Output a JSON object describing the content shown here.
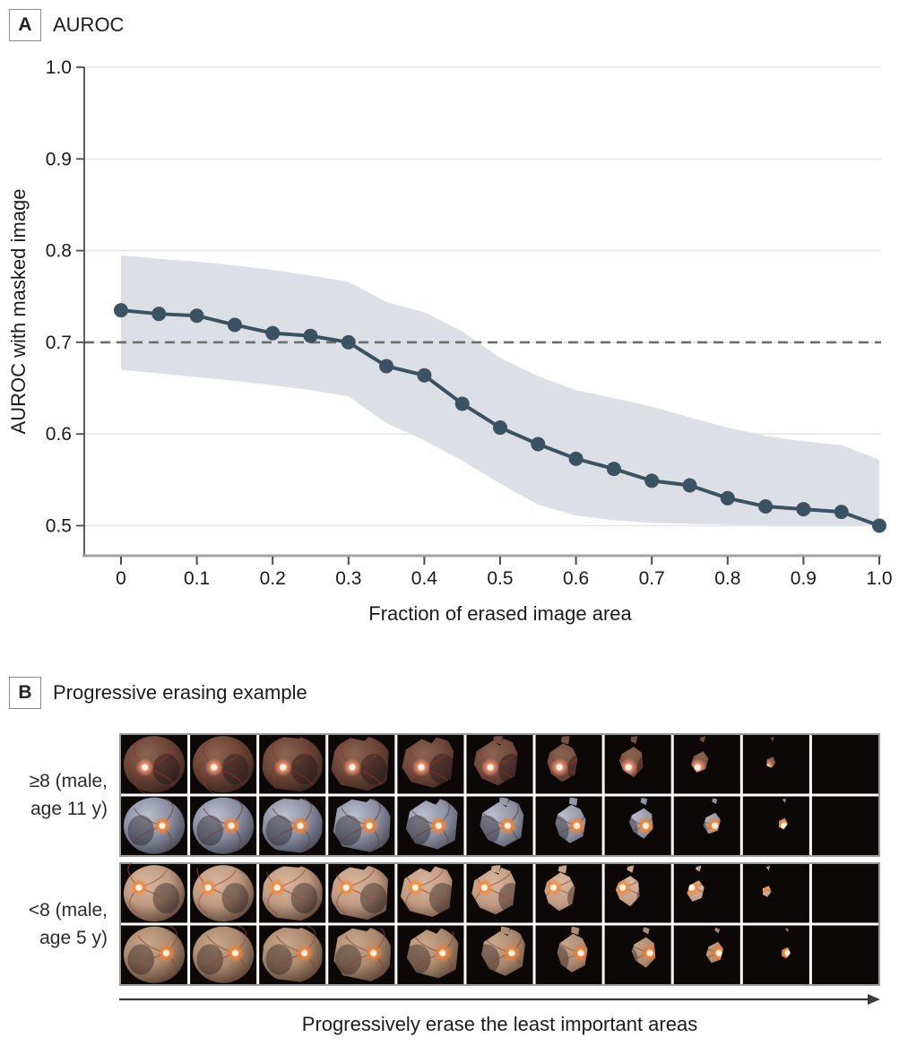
{
  "panel_a": {
    "label": "A",
    "title": "AUROC"
  },
  "chart_data": {
    "type": "line",
    "title": "AUROC",
    "xlabel": "Fraction of erased image area",
    "ylabel": "AUROC with masked image",
    "x": [
      0,
      0.05,
      0.1,
      0.15,
      0.2,
      0.25,
      0.3,
      0.35,
      0.4,
      0.45,
      0.5,
      0.55,
      0.6,
      0.65,
      0.7,
      0.75,
      0.8,
      0.85,
      0.9,
      0.95,
      1.0
    ],
    "series": [
      {
        "name": "AUROC with masked image",
        "values": [
          0.735,
          0.731,
          0.729,
          0.719,
          0.71,
          0.707,
          0.7,
          0.674,
          0.664,
          0.633,
          0.607,
          0.589,
          0.573,
          0.562,
          0.549,
          0.544,
          0.53,
          0.521,
          0.518,
          0.515,
          0.5
        ]
      }
    ],
    "ci_upper": [
      0.795,
      0.791,
      0.788,
      0.784,
      0.779,
      0.773,
      0.766,
      0.744,
      0.733,
      0.712,
      0.683,
      0.663,
      0.648,
      0.639,
      0.63,
      0.618,
      0.607,
      0.598,
      0.592,
      0.588,
      0.572
    ],
    "ci_lower": [
      0.67,
      0.666,
      0.662,
      0.658,
      0.653,
      0.648,
      0.641,
      0.612,
      0.593,
      0.571,
      0.546,
      0.523,
      0.511,
      0.506,
      0.503,
      0.502,
      0.501,
      0.5,
      0.5,
      0.5,
      0.5
    ],
    "reference_line_y": 0.7,
    "xlim": [
      0,
      1.0
    ],
    "ylim": [
      0.467,
      1.0
    ],
    "xticks": [
      0,
      0.1,
      0.2,
      0.3,
      0.4,
      0.5,
      0.6,
      0.7,
      0.8,
      0.9,
      1.0
    ],
    "xtick_labels": [
      "0",
      "0.1",
      "0.2",
      "0.3",
      "0.4",
      "0.5",
      "0.6",
      "0.7",
      "0.8",
      "0.9",
      "1.0"
    ],
    "yticks": [
      1.0,
      0.9,
      0.8,
      0.7,
      0.6,
      0.5
    ],
    "ytick_labels": [
      "1.0",
      "0.9",
      "0.8",
      "0.7",
      "0.6",
      "0.5"
    ],
    "grid": true,
    "legend": false,
    "colors": {
      "line": "#3a5261",
      "band": "#d7dce2",
      "reference_dashed": "#6d6d6d",
      "gridline": "#e7e7e7",
      "x_axis": "#a3a3a3",
      "y_axis": "#4d4d4d",
      "tick_label": "#1a1a1a"
    }
  },
  "panel_b": {
    "label": "B",
    "title": "Progressive erasing example",
    "caption": "Progressively erase the least important areas",
    "n_columns": 11,
    "groups": [
      {
        "label_line1": "≥8 (male,",
        "label_line2": "age 11 y)",
        "rows": [
          {
            "name": "fundus-brown",
            "light": "#8a6350",
            "base": "#6e4538",
            "dark": "#2a1d17",
            "disc_x": 0.36,
            "disc_y": 0.55,
            "disc_center": "#f8e3d4",
            "disc_ring": "#e08a6a",
            "vessel": "#8c3428"
          },
          {
            "name": "fundus-bluegray",
            "light": "#bcc0ce",
            "base": "#8b90a3",
            "dark": "#32333c",
            "disc_x": 0.62,
            "disc_y": 0.5,
            "disc_center": "#ffe9c9",
            "disc_ring": "#f08438",
            "vessel": "#6a4040"
          }
        ]
      },
      {
        "label_line1": "<8 (male,",
        "label_line2": "age 5 y)",
        "rows": [
          {
            "name": "fundus-pink-tan",
            "light": "#d8b8a0",
            "base": "#c09b82",
            "dark": "#3c2b22",
            "disc_x": 0.27,
            "disc_y": 0.4,
            "disc_center": "#ffe2bc",
            "disc_ring": "#ec8c46",
            "vessel": "#9a4a38"
          },
          {
            "name": "fundus-tan",
            "light": "#c9a98d",
            "base": "#ad8a6f",
            "dark": "#3a2a21",
            "disc_x": 0.68,
            "disc_y": 0.47,
            "disc_center": "#ffdcb0",
            "disc_ring": "#e8813c",
            "vessel": "#8e4632"
          }
        ]
      }
    ],
    "grid_colors": {
      "border": "#9a9a9a",
      "separator": "#ffffff",
      "cell_bg": "#0c0807",
      "arrow": "#3a3a3a"
    }
  }
}
